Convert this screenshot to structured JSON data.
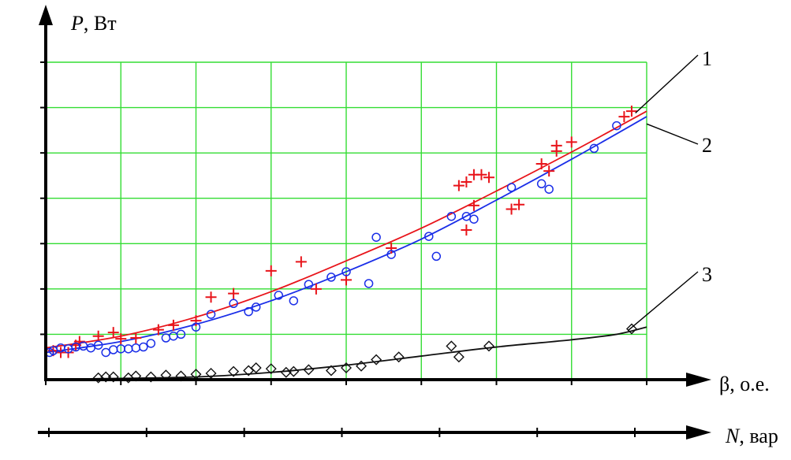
{
  "chart_data": {
    "type": "scatter",
    "title": "",
    "ylabel": {
      "var": "P",
      "unit": ", Вт"
    },
    "xlabel": {
      "sym": "β",
      "unit": ", о.е."
    },
    "x2label": {
      "var": "N",
      "unit": ", вар"
    },
    "xlim": [
      0.2,
      1.0
    ],
    "ylim": [
      0,
      350
    ],
    "x_ticks": [
      "0.2",
      "0.3",
      "0.4",
      "0.5",
      "0.6",
      "0.7",
      "0.8",
      "0.9",
      "1.0"
    ],
    "y_ticks": [
      "50",
      "100",
      "150",
      "200",
      "250",
      "300",
      "350"
    ],
    "x2_ticks": [
      "0",
      "50",
      "100",
      "150",
      "200",
      "250",
      "300"
    ],
    "grid": true,
    "colors": {
      "grid": "#33dd33",
      "series1": "#e8141a",
      "series2": "#1a2ee8",
      "series3": "#111111",
      "axis": "#000000"
    },
    "curve_labels": [
      "1",
      "2",
      "3"
    ],
    "series": [
      {
        "marker": "plus",
        "color": "#e8141a",
        "x": [
          0.21,
          0.22,
          0.23,
          0.24,
          0.245,
          0.27,
          0.29,
          0.3,
          0.32,
          0.35,
          0.37,
          0.4,
          0.42,
          0.45,
          0.5,
          0.54,
          0.56,
          0.6,
          0.66,
          0.75,
          0.76,
          0.76,
          0.77,
          0.77,
          0.78,
          0.79,
          0.82,
          0.83,
          0.86,
          0.87,
          0.88,
          0.88,
          0.9,
          0.97,
          0.98
        ],
        "y": [
          32,
          30,
          30,
          38,
          42,
          48,
          52,
          45,
          46,
          55,
          60,
          65,
          91,
          95,
          120,
          130,
          100,
          110,
          145,
          214,
          218,
          165,
          226,
          192,
          226,
          223,
          188,
          193,
          238,
          230,
          258,
          252,
          262,
          290,
          296
        ],
        "fit": {
          "x": [
            0.2,
            0.3,
            0.4,
            0.5,
            0.6,
            0.7,
            0.8,
            0.9,
            1.0
          ],
          "y": [
            35,
            48,
            69,
            97,
            131,
            167,
            208,
            251,
            296
          ]
        }
      },
      {
        "marker": "circle",
        "color": "#1a2ee8",
        "x": [
          0.205,
          0.21,
          0.22,
          0.23,
          0.24,
          0.25,
          0.26,
          0.27,
          0.28,
          0.29,
          0.3,
          0.31,
          0.32,
          0.33,
          0.34,
          0.36,
          0.37,
          0.38,
          0.4,
          0.42,
          0.45,
          0.47,
          0.48,
          0.51,
          0.53,
          0.55,
          0.58,
          0.6,
          0.63,
          0.64,
          0.66,
          0.71,
          0.72,
          0.74,
          0.76,
          0.77,
          0.82,
          0.86,
          0.87,
          0.93,
          0.96
        ],
        "y": [
          30,
          32,
          35,
          34,
          36,
          37,
          35,
          38,
          30,
          33,
          34,
          34,
          35,
          36,
          40,
          46,
          48,
          50,
          58,
          72,
          84,
          75,
          80,
          93,
          87,
          105,
          113,
          119,
          106,
          157,
          138,
          158,
          136,
          180,
          180,
          177,
          212,
          216,
          210,
          255,
          280
        ],
        "fit": {
          "x": [
            0.2,
            0.3,
            0.4,
            0.5,
            0.6,
            0.7,
            0.8,
            0.9,
            1.0
          ],
          "y": [
            30,
            42,
            61,
            87,
            119,
            155,
            198,
            243,
            290
          ]
        }
      },
      {
        "marker": "diamond",
        "color": "#111111",
        "x": [
          0.27,
          0.28,
          0.29,
          0.31,
          0.32,
          0.34,
          0.36,
          0.38,
          0.4,
          0.42,
          0.45,
          0.47,
          0.48,
          0.5,
          0.52,
          0.53,
          0.55,
          0.58,
          0.6,
          0.62,
          0.64,
          0.67,
          0.74,
          0.75,
          0.79,
          0.98
        ],
        "y": [
          2,
          3,
          3,
          2,
          4,
          3,
          5,
          4,
          6,
          7,
          9,
          10,
          13,
          12,
          8,
          9,
          11,
          10,
          13,
          15,
          22,
          25,
          37,
          25,
          37,
          56
        ],
        "fit": {
          "x": [
            0.26,
            0.4,
            0.5,
            0.6,
            0.7,
            0.8,
            0.9,
            0.96,
            1.0
          ],
          "y": [
            1,
            3,
            8,
            16,
            26,
            36,
            44,
            50,
            58
          ]
        }
      }
    ]
  }
}
